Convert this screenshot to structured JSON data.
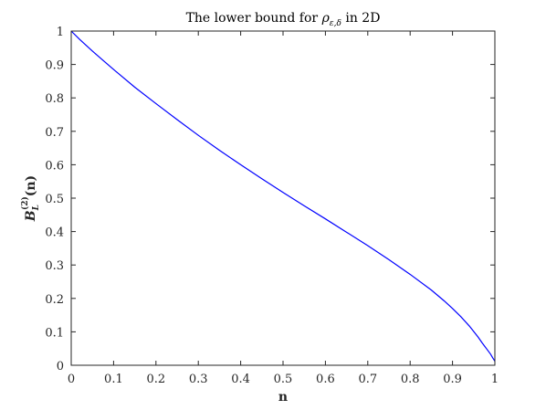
{
  "chart_data": {
    "type": "line",
    "title": {
      "prefix": "The lower bound for ",
      "symbol": "ρ",
      "subscript": "ε,δ",
      "suffix": " in 2D"
    },
    "xlabel": "n",
    "ylabel": {
      "base": "B",
      "subscript": "L",
      "superscript": "(2)",
      "argument": "(n)"
    },
    "xlim": [
      0,
      1
    ],
    "ylim": [
      0,
      1
    ],
    "xticks": [
      "0",
      "0.1",
      "0.2",
      "0.3",
      "0.4",
      "0.5",
      "0.6",
      "0.7",
      "0.8",
      "0.9",
      "1"
    ],
    "yticks": [
      "0",
      "0.1",
      "0.2",
      "0.3",
      "0.4",
      "0.5",
      "0.6",
      "0.7",
      "0.8",
      "0.9",
      "1"
    ],
    "grid": false,
    "series": [
      {
        "color": "#0000ff",
        "x": [
          0,
          0.02,
          0.05,
          0.08,
          0.1,
          0.15,
          0.2,
          0.25,
          0.3,
          0.35,
          0.4,
          0.45,
          0.5,
          0.55,
          0.6,
          0.65,
          0.7,
          0.75,
          0.8,
          0.85,
          0.88,
          0.9,
          0.92,
          0.94,
          0.96,
          0.97,
          0.98,
          0.99,
          0.995,
          1.0
        ],
        "y": [
          1.0,
          0.975,
          0.94,
          0.907,
          0.885,
          0.832,
          0.783,
          0.735,
          0.688,
          0.643,
          0.6,
          0.558,
          0.517,
          0.477,
          0.438,
          0.398,
          0.358,
          0.316,
          0.272,
          0.225,
          0.193,
          0.17,
          0.145,
          0.117,
          0.085,
          0.067,
          0.05,
          0.033,
          0.022,
          0.012
        ]
      }
    ]
  }
}
